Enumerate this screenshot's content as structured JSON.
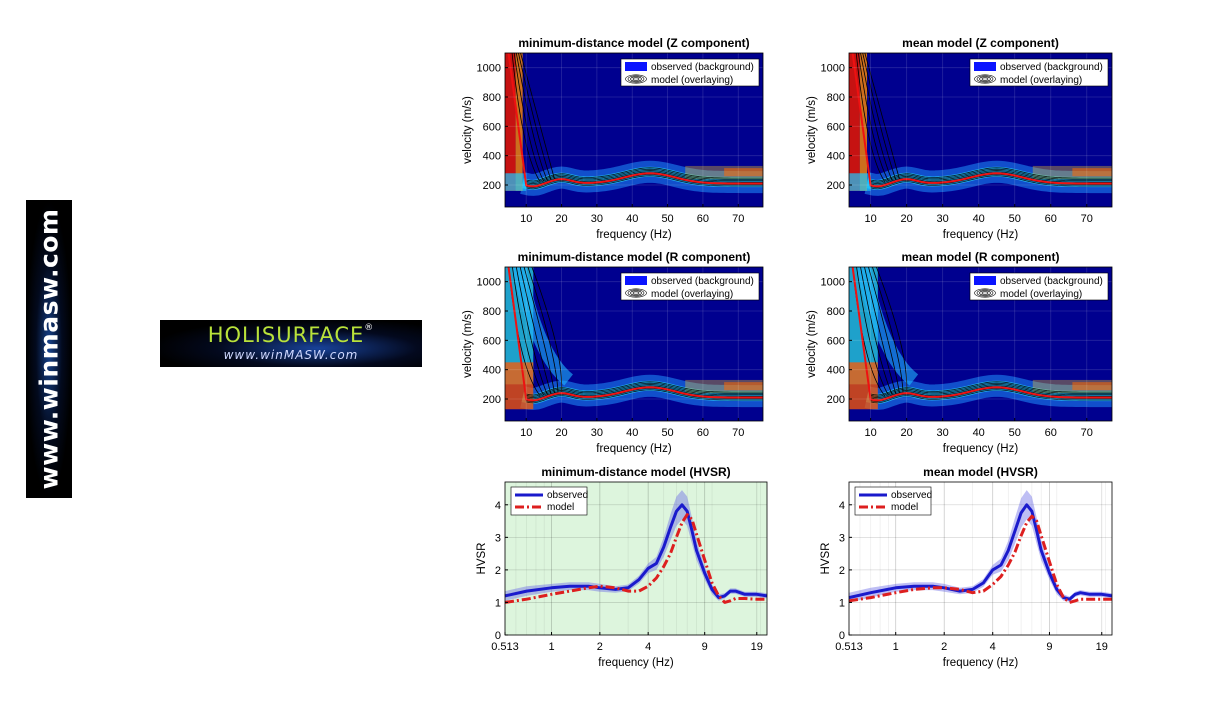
{
  "banner": {
    "vertical_text": "www.winmasw.com",
    "logo_name": "HOLISURFACE",
    "logo_reg": "®",
    "logo_site": "www.winMASW.com"
  },
  "colors": {
    "bg_dark": "#00008f",
    "observed": "#1a1acc",
    "model": "#dd1f1f",
    "hvsr_bg_highlight": "#ddf5dd"
  },
  "chart_data": [
    {
      "type": "heatmap",
      "title": "minimum-distance model (Z component)",
      "xlabel": "frequency (Hz)",
      "ylabel": "velocity (m/s)",
      "xlim": [
        4,
        77
      ],
      "ylim": [
        50,
        1100
      ],
      "xticks": [
        10,
        20,
        30,
        40,
        50,
        60,
        70
      ],
      "yticks": [
        200,
        400,
        600,
        800,
        1000
      ],
      "legend": [
        "observed (background)",
        "model (overlaying)"
      ],
      "legend_position": "top-right",
      "grid": true
    },
    {
      "type": "heatmap",
      "title": "mean model (Z component)",
      "xlabel": "frequency (Hz)",
      "ylabel": "velocity (m/s)",
      "xlim": [
        4,
        77
      ],
      "ylim": [
        50,
        1100
      ],
      "xticks": [
        10,
        20,
        30,
        40,
        50,
        60,
        70
      ],
      "yticks": [
        200,
        400,
        600,
        800,
        1000
      ],
      "legend": [
        "observed (background)",
        "model (overlaying)"
      ],
      "legend_position": "top-right",
      "grid": true
    },
    {
      "type": "heatmap",
      "title": "minimum-distance model (R component)",
      "xlabel": "frequency (Hz)",
      "ylabel": "velocity (m/s)",
      "xlim": [
        4,
        77
      ],
      "ylim": [
        50,
        1100
      ],
      "xticks": [
        10,
        20,
        30,
        40,
        50,
        60,
        70
      ],
      "yticks": [
        200,
        400,
        600,
        800,
        1000
      ],
      "legend": [
        "observed (background)",
        "model (overlaying)"
      ],
      "legend_position": "top-right",
      "grid": true
    },
    {
      "type": "heatmap",
      "title": "mean model (R component)",
      "xlabel": "frequency (Hz)",
      "ylabel": "velocity (m/s)",
      "xlim": [
        4,
        77
      ],
      "ylim": [
        50,
        1100
      ],
      "xticks": [
        10,
        20,
        30,
        40,
        50,
        60,
        70
      ],
      "yticks": [
        200,
        400,
        600,
        800,
        1000
      ],
      "legend": [
        "observed (background)",
        "model (overlaying)"
      ],
      "legend_position": "top-right",
      "grid": true
    },
    {
      "type": "line",
      "title": "minimum-distance model (HVSR)",
      "xlabel": "frequency (Hz)",
      "ylabel": "HVSR",
      "xscale": "log",
      "xlim": [
        0.513,
        22
      ],
      "ylim": [
        0,
        4.7
      ],
      "xticks": [
        0.513,
        1,
        2,
        4,
        9,
        19
      ],
      "xtick_labels": [
        "0.513",
        "1",
        "2",
        "4",
        "9",
        "19"
      ],
      "yticks": [
        0,
        1,
        2,
        3,
        4
      ],
      "legend_position": "top-left",
      "grid": true,
      "background": "#ddf5dd",
      "series": [
        {
          "name": "observed",
          "x": [
            0.513,
            0.7,
            1,
            1.3,
            1.7,
            2,
            2.5,
            3,
            3.5,
            4,
            4.5,
            5,
            5.5,
            6,
            6.5,
            7,
            7.5,
            8,
            9,
            10,
            11,
            12,
            13,
            14,
            16,
            19,
            22
          ],
          "y": [
            1.2,
            1.35,
            1.45,
            1.5,
            1.5,
            1.45,
            1.4,
            1.45,
            1.7,
            2.05,
            2.2,
            2.7,
            3.3,
            3.8,
            4.0,
            3.8,
            3.2,
            2.6,
            1.9,
            1.4,
            1.15,
            1.2,
            1.35,
            1.35,
            1.25,
            1.25,
            1.2
          ],
          "band": [
            0.15,
            0.15,
            0.12,
            0.12,
            0.12,
            0.12,
            0.1,
            0.1,
            0.12,
            0.15,
            0.2,
            0.3,
            0.4,
            0.45,
            0.45,
            0.45,
            0.4,
            0.3,
            0.2,
            0.15,
            0.1,
            0.08,
            0.08,
            0.08,
            0.08,
            0.08,
            0.08
          ]
        },
        {
          "name": "model",
          "x": [
            0.513,
            0.7,
            1,
            1.3,
            1.7,
            2,
            2.5,
            3,
            3.5,
            4,
            4.5,
            5,
            5.5,
            6,
            6.5,
            7,
            7.5,
            8,
            9,
            10,
            11,
            12,
            13,
            14,
            16,
            19,
            22
          ],
          "y": [
            1.0,
            1.1,
            1.25,
            1.35,
            1.45,
            1.5,
            1.45,
            1.35,
            1.35,
            1.5,
            1.75,
            2.1,
            2.5,
            3.0,
            3.45,
            3.7,
            3.55,
            3.1,
            2.3,
            1.6,
            1.2,
            1.0,
            1.05,
            1.12,
            1.12,
            1.1,
            1.1
          ]
        }
      ]
    },
    {
      "type": "line",
      "title": "mean model (HVSR)",
      "xlabel": "frequency (Hz)",
      "ylabel": "HVSR",
      "xscale": "log",
      "xlim": [
        0.513,
        22
      ],
      "ylim": [
        0,
        4.7
      ],
      "xticks": [
        0.513,
        1,
        2,
        4,
        9,
        19
      ],
      "xtick_labels": [
        "0.513",
        "1",
        "2",
        "4",
        "9",
        "19"
      ],
      "yticks": [
        0,
        1,
        2,
        3,
        4
      ],
      "legend_position": "top-left",
      "grid": true,
      "background": "#ffffff",
      "series": [
        {
          "name": "observed",
          "x": [
            0.513,
            0.7,
            1,
            1.3,
            1.7,
            2,
            2.5,
            3,
            3.5,
            4,
            4.5,
            5,
            5.5,
            6,
            6.5,
            7,
            7.5,
            8,
            9,
            10,
            11,
            12,
            13,
            14,
            16,
            19,
            22
          ],
          "y": [
            1.15,
            1.3,
            1.45,
            1.5,
            1.5,
            1.45,
            1.35,
            1.4,
            1.6,
            2.0,
            2.15,
            2.6,
            3.2,
            3.75,
            4.0,
            3.8,
            3.2,
            2.6,
            1.9,
            1.4,
            1.15,
            1.1,
            1.25,
            1.3,
            1.25,
            1.25,
            1.2
          ],
          "band": [
            0.15,
            0.15,
            0.12,
            0.12,
            0.12,
            0.12,
            0.1,
            0.1,
            0.12,
            0.15,
            0.2,
            0.3,
            0.4,
            0.45,
            0.45,
            0.45,
            0.4,
            0.3,
            0.2,
            0.15,
            0.1,
            0.08,
            0.08,
            0.08,
            0.08,
            0.08,
            0.08
          ]
        },
        {
          "name": "model",
          "x": [
            0.513,
            0.7,
            1,
            1.3,
            1.7,
            2,
            2.5,
            3,
            3.5,
            4,
            4.5,
            5,
            5.5,
            6,
            6.5,
            7,
            7.5,
            8,
            9,
            10,
            11,
            12,
            13,
            14,
            16,
            19,
            22
          ],
          "y": [
            1.05,
            1.15,
            1.3,
            1.4,
            1.45,
            1.45,
            1.4,
            1.3,
            1.35,
            1.55,
            1.8,
            2.15,
            2.55,
            3.05,
            3.45,
            3.65,
            3.5,
            3.05,
            2.25,
            1.55,
            1.15,
            1.0,
            1.05,
            1.1,
            1.1,
            1.1,
            1.1
          ]
        }
      ]
    }
  ]
}
